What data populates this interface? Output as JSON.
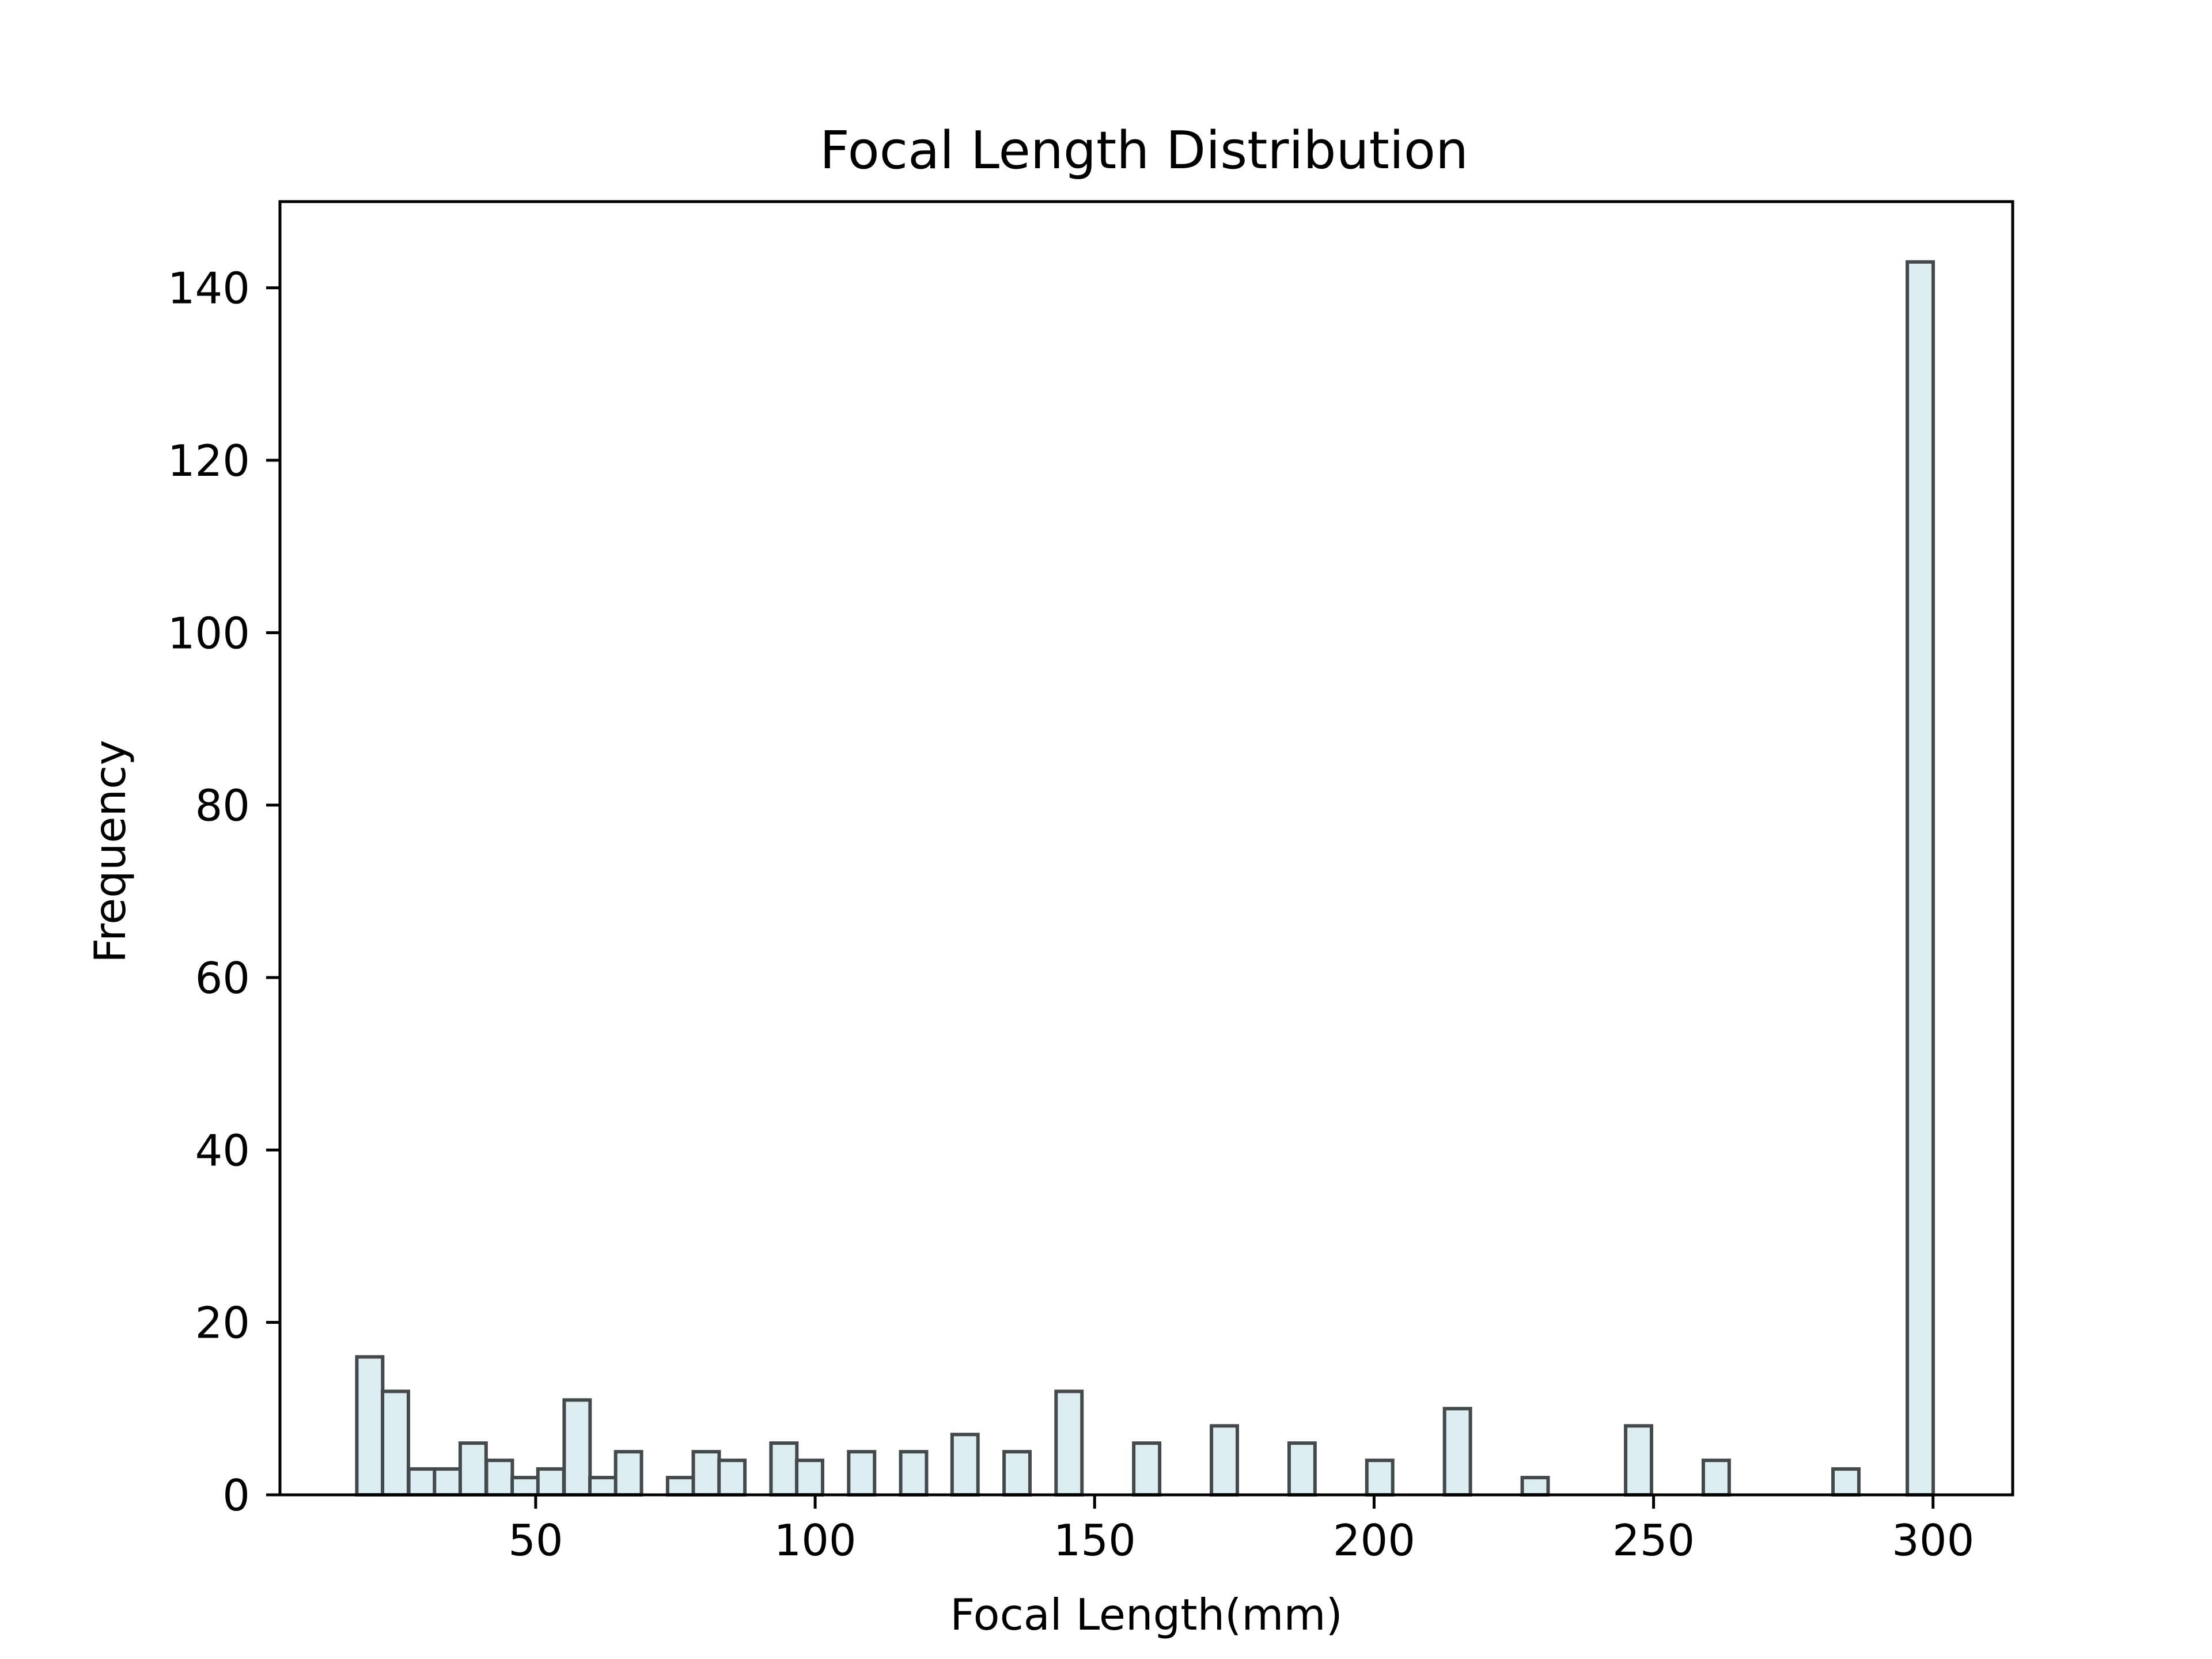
{
  "chart_data": {
    "type": "bar",
    "title": "Focal Length Distribution",
    "xlabel": "Focal Length(mm)",
    "ylabel": "Frequency",
    "xlim": [
      4.25,
      314.25
    ],
    "ylim": [
      0,
      150
    ],
    "bin_width": 4.63,
    "xticks": [
      50,
      100,
      150,
      200,
      250,
      300
    ],
    "yticks": [
      0,
      20,
      40,
      60,
      80,
      100,
      120,
      140
    ],
    "grid": false,
    "legend": "none",
    "bar_fill": "#ddeef3",
    "bar_edge": "#444a4b",
    "bins": [
      {
        "x": 18,
        "value": 16
      },
      {
        "x": 22.6,
        "value": 12
      },
      {
        "x": 27.3,
        "value": 3
      },
      {
        "x": 31.9,
        "value": 3
      },
      {
        "x": 36.5,
        "value": 6
      },
      {
        "x": 41.2,
        "value": 4
      },
      {
        "x": 45.8,
        "value": 2
      },
      {
        "x": 50.4,
        "value": 3
      },
      {
        "x": 55.1,
        "value": 11
      },
      {
        "x": 59.7,
        "value": 2
      },
      {
        "x": 64.3,
        "value": 5
      },
      {
        "x": 73.6,
        "value": 2
      },
      {
        "x": 78.2,
        "value": 5
      },
      {
        "x": 82.8,
        "value": 4
      },
      {
        "x": 92.1,
        "value": 6
      },
      {
        "x": 96.7,
        "value": 4
      },
      {
        "x": 106,
        "value": 5
      },
      {
        "x": 115.3,
        "value": 5
      },
      {
        "x": 124.5,
        "value": 7
      },
      {
        "x": 133.8,
        "value": 5
      },
      {
        "x": 143.1,
        "value": 12
      },
      {
        "x": 157,
        "value": 6
      },
      {
        "x": 170.9,
        "value": 8
      },
      {
        "x": 184.8,
        "value": 6
      },
      {
        "x": 198.7,
        "value": 4
      },
      {
        "x": 212.6,
        "value": 10
      },
      {
        "x": 226.5,
        "value": 2
      },
      {
        "x": 245,
        "value": 8
      },
      {
        "x": 258.9,
        "value": 4
      },
      {
        "x": 282.1,
        "value": 3
      },
      {
        "x": 295.4,
        "value": 143
      }
    ]
  }
}
